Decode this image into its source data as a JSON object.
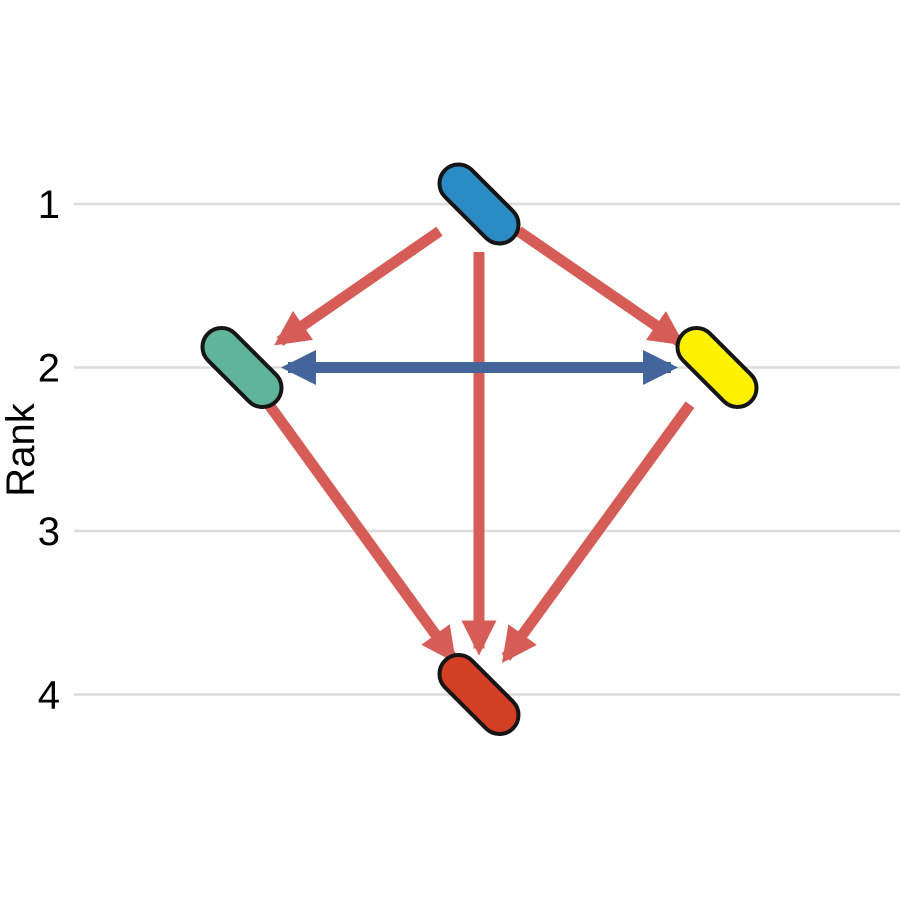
{
  "axis": {
    "title": "Rank",
    "ticks": [
      "1",
      "2",
      "3",
      "4"
    ],
    "gridline_color": "#dcdcdc"
  },
  "nodes": [
    {
      "id": "blue-node",
      "rank": 1,
      "column": "center",
      "fill": "#2a8bc5"
    },
    {
      "id": "green-node",
      "rank": 2,
      "column": "left",
      "fill": "#5fb49a"
    },
    {
      "id": "yellow-node",
      "rank": 2,
      "column": "right",
      "fill": "#fff200"
    },
    {
      "id": "red-node",
      "rank": 4,
      "column": "center",
      "fill": "#d43f24"
    }
  ],
  "edges": [
    {
      "id": "blue-to-green",
      "from": "blue-node",
      "to": "green-node",
      "color": "#d65c58",
      "bidirectional": false
    },
    {
      "id": "blue-to-red",
      "from": "blue-node",
      "to": "red-node",
      "color": "#d65c58",
      "bidirectional": false
    },
    {
      "id": "blue-to-yellow",
      "from": "blue-node",
      "to": "yellow-node",
      "color": "#d65c58",
      "bidirectional": false
    },
    {
      "id": "green-to-red",
      "from": "green-node",
      "to": "red-node",
      "color": "#d65c58",
      "bidirectional": false
    },
    {
      "id": "yellow-to-red",
      "from": "yellow-node",
      "to": "red-node",
      "color": "#d65c58",
      "bidirectional": false
    },
    {
      "id": "green-yellow",
      "from": "green-node",
      "to": "yellow-node",
      "color": "#44659c",
      "bidirectional": true
    }
  ]
}
